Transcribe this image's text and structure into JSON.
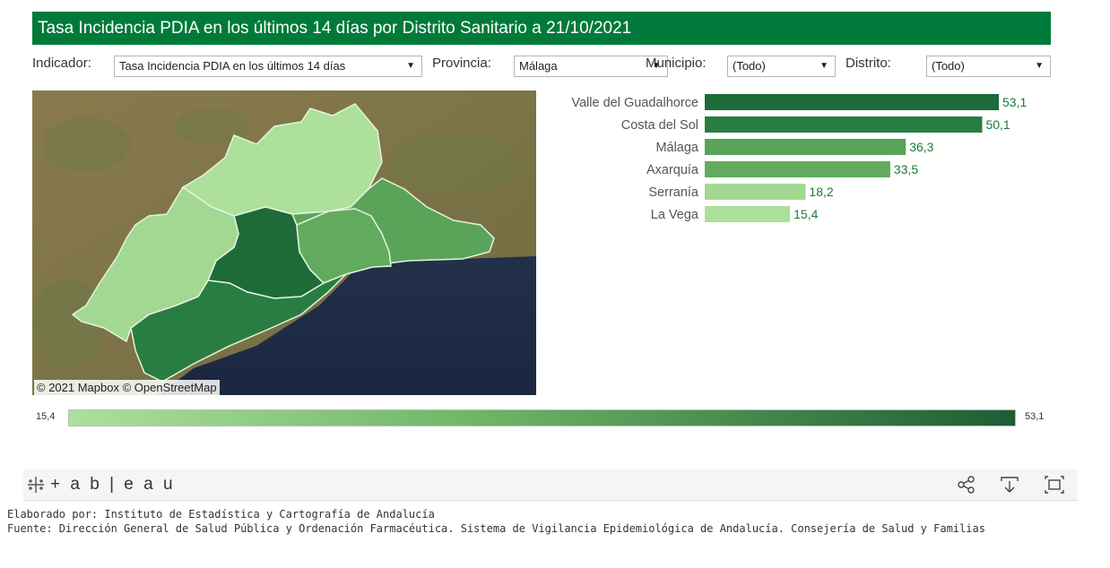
{
  "title": "Tasa Incidencia PDIA en los últimos 14 días por Distrito Sanitario a 21/10/2021",
  "filters": {
    "indicador": {
      "label": "Indicador:",
      "value": "Tasa Incidencia PDIA en los últimos 14 días"
    },
    "provincia": {
      "label": "Provincia:",
      "value": "Málaga"
    },
    "municipio": {
      "label": "Municipio:",
      "value": "(Todo)"
    },
    "distrito": {
      "label": "Distrito:",
      "value": "(Todo)"
    }
  },
  "map": {
    "credit": "© 2021 Mapbox  © OpenStreetMap"
  },
  "chart_data": {
    "type": "bar",
    "orientation": "horizontal",
    "categories": [
      "Valle del Guadalhorce",
      "Costa del Sol",
      "Málaga",
      "Axarquía",
      "Serranía",
      "La Vega"
    ],
    "values": [
      53.1,
      50.1,
      36.3,
      33.5,
      18.2,
      15.4
    ],
    "value_labels": [
      "53,1",
      "50,1",
      "36,3",
      "33,5",
      "18,2",
      "15,4"
    ],
    "colors": [
      "#1e6b3a",
      "#2a7d42",
      "#5aa45a",
      "#62ab5e",
      "#a3d892",
      "#ade09b"
    ],
    "xlim": [
      0,
      53.1
    ]
  },
  "legend": {
    "min_label": "15,4",
    "max_label": "53,1",
    "color_low": "#ade09b",
    "color_high": "#1e5c34"
  },
  "toolbar": {
    "brand": "+ a b | e a u",
    "icons": [
      "share-icon",
      "download-icon",
      "fullscreen-icon"
    ]
  },
  "footer": {
    "line1": "Elaborado por: Instituto de Estadística y Cartografía de Andalucía",
    "line2": "Fuente: Dirección General de Salud Pública y Ordenación Farmacéutica. Sistema de Vigilancia Epidemiológica de Andalucía. Consejería de Salud y Familias"
  },
  "colors": {
    "header": "#007a3a",
    "value_text": "#1a7a3a"
  }
}
